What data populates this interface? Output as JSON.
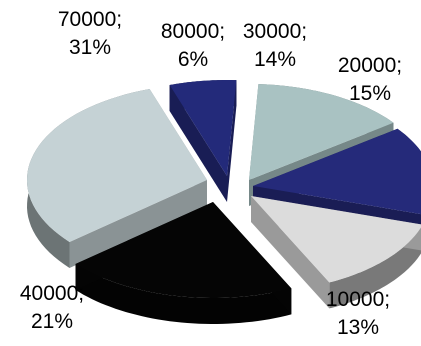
{
  "chart_data": {
    "type": "pie",
    "style": "3d-exploded",
    "title": "",
    "slices": [
      {
        "category": "30000",
        "percent": "14%",
        "value": 14,
        "color": "#a9c2c2",
        "label": "30000; 14%"
      },
      {
        "category": "20000",
        "percent": "15%",
        "value": 15,
        "color": "#252a7a",
        "label": "20000; 15%"
      },
      {
        "category": "10000",
        "percent": "13%",
        "value": 13,
        "color": "#dcdcdc",
        "label": "10000; 13%"
      },
      {
        "category": "40000",
        "percent": "21%",
        "value": 21,
        "color": "#050505",
        "label": "40000; 21%"
      },
      {
        "category": "70000",
        "percent": "31%",
        "value": 31,
        "color": "#c5d2d5",
        "label": "70000; 31%"
      },
      {
        "category": "80000",
        "percent": "6%",
        "value": 6,
        "color": "#232a7a",
        "label": "80000; 6%"
      }
    ]
  }
}
